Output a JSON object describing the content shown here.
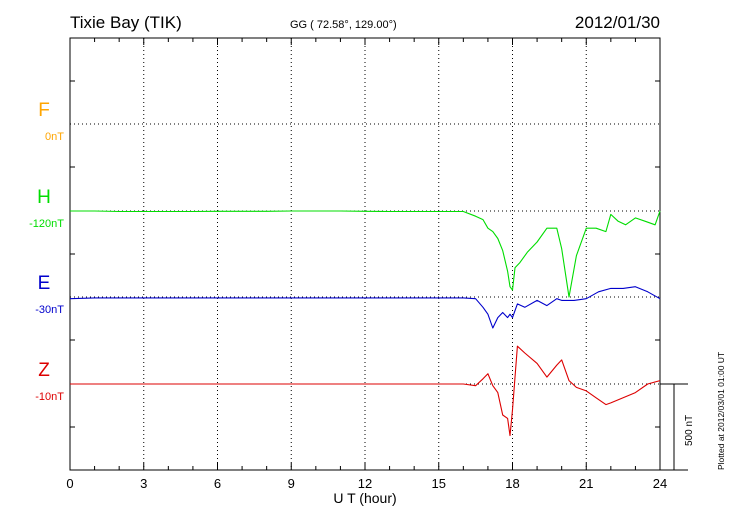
{
  "header": {
    "station": "Tixie Bay (TIK)",
    "coords": "GG ( 72.58°, 129.00°)",
    "date": "2012/01/30"
  },
  "plotted_note": "Plotted at 2012/03/01 01:00 UT",
  "scale_label": "500 nT",
  "colors": {
    "F": "#ffa500",
    "H": "#00dd00",
    "E": "#0000cc",
    "Z": "#dd0000"
  },
  "chart_data": {
    "type": "line",
    "xlabel": "U T (hour)",
    "ylabel": "",
    "xlim": [
      0,
      24
    ],
    "xticks": [
      0,
      3,
      6,
      9,
      12,
      15,
      18,
      21,
      24
    ],
    "grid": true,
    "channels": [
      {
        "name": "F",
        "offset_label": "0nT",
        "baseline_hour_marker": true
      },
      {
        "name": "H",
        "offset_label": "-120nT"
      },
      {
        "name": "E",
        "offset_label": "-30nT"
      },
      {
        "name": "Z",
        "offset_label": "-10nT"
      }
    ],
    "series": [
      {
        "name": "H",
        "unit": "nT",
        "x": [
          0,
          1,
          2,
          3,
          4,
          5,
          6,
          7,
          8,
          9,
          10,
          11,
          12,
          13,
          14,
          15,
          16,
          16.5,
          16.8,
          17,
          17.2,
          17.4,
          17.6,
          17.8,
          17.9,
          18.0,
          18.1,
          18.3,
          18.6,
          19,
          19.4,
          19.8,
          20,
          20.3,
          20.6,
          21,
          21.4,
          21.8,
          22,
          22.3,
          22.6,
          23,
          23.4,
          23.8,
          24
        ],
        "y": [
          0,
          0,
          -3,
          -3,
          -3,
          -3,
          -2,
          -2,
          -2,
          0,
          0,
          0,
          -2,
          -3,
          -3,
          -3,
          -3,
          -30,
          -50,
          -100,
          -120,
          -160,
          -230,
          -350,
          -440,
          -460,
          -330,
          -300,
          -240,
          -180,
          -100,
          -100,
          -220,
          -500,
          -260,
          -100,
          -100,
          -120,
          -20,
          -60,
          -80,
          -40,
          -60,
          -80,
          0
        ]
      },
      {
        "name": "E",
        "unit": "nT",
        "x": [
          0,
          1,
          2,
          3,
          4,
          5,
          6,
          7,
          8,
          9,
          10,
          11,
          12,
          13,
          14,
          15,
          16,
          16.5,
          16.8,
          17,
          17.2,
          17.4,
          17.6,
          17.8,
          17.9,
          18.0,
          18.2,
          18.5,
          19,
          19.4,
          19.8,
          20,
          20.5,
          21,
          21.5,
          22,
          22.5,
          23,
          23.5,
          24
        ],
        "y": [
          -10,
          -5,
          -5,
          -5,
          -5,
          -5,
          -5,
          -5,
          -5,
          -5,
          -5,
          -5,
          -5,
          -5,
          -5,
          -5,
          -5,
          -10,
          -60,
          -100,
          -180,
          -120,
          -90,
          -120,
          -100,
          -120,
          -40,
          -60,
          -20,
          -50,
          -10,
          -20,
          -20,
          -10,
          30,
          50,
          50,
          60,
          30,
          -10
        ]
      },
      {
        "name": "Z",
        "unit": "nT",
        "x": [
          0,
          1,
          2,
          3,
          4,
          5,
          6,
          7,
          8,
          9,
          10,
          11,
          12,
          13,
          14,
          15,
          16,
          16.5,
          16.8,
          17,
          17.2,
          17.4,
          17.6,
          17.8,
          17.9,
          18.0,
          18.2,
          18.5,
          19,
          19.4,
          19.8,
          20,
          20.3,
          20.6,
          21,
          21.4,
          21.8,
          22,
          22.5,
          23,
          23.5,
          24
        ],
        "y": [
          0,
          0,
          0,
          0,
          0,
          0,
          0,
          0,
          0,
          0,
          0,
          0,
          0,
          0,
          0,
          0,
          0,
          -10,
          30,
          60,
          -10,
          -50,
          -180,
          -200,
          -300,
          -150,
          220,
          180,
          120,
          40,
          110,
          140,
          20,
          -20,
          -40,
          -80,
          -120,
          -110,
          -80,
          -50,
          0,
          20
        ]
      }
    ]
  }
}
